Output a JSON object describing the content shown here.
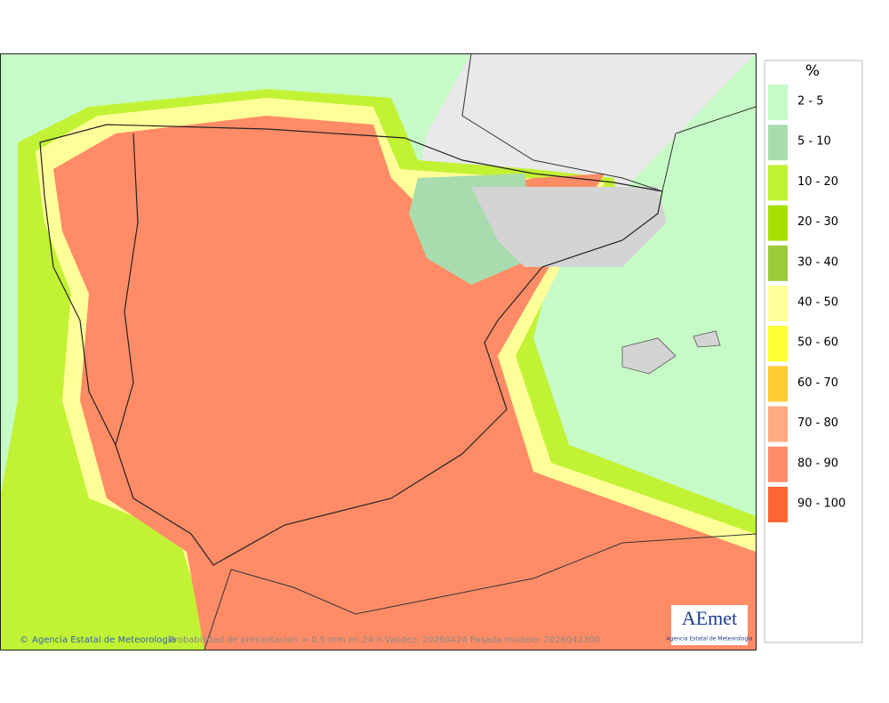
{
  "map": {
    "footer": {
      "credit": "Agencia Estatal de Meteorología",
      "caption": "Probabilidad de precipitación > 0.5 mm en 24 h Validez: 20260424 Pasada modelo: 2026042300"
    },
    "logo": {
      "name": "AEmet",
      "subtitle": "Agencia Estatal de Meteorología"
    }
  },
  "legend": {
    "title": "%",
    "items": [
      {
        "label": "2 - 5",
        "color": "#c6fac6"
      },
      {
        "label": "5 - 10",
        "color": "#a8dcae"
      },
      {
        "label": "10 - 20",
        "color": "#c2f234"
      },
      {
        "label": "20 - 30",
        "color": "#a6e000"
      },
      {
        "label": "30 - 40",
        "color": "#9ccc3a"
      },
      {
        "label": "40 - 50",
        "color": "#ffff99"
      },
      {
        "label": "50 - 60",
        "color": "#ffff33"
      },
      {
        "label": "60 - 70",
        "color": "#ffcc33"
      },
      {
        "label": "70 - 80",
        "color": "#ffaa80"
      },
      {
        "label": "80 - 90",
        "color": "#ff8c66"
      },
      {
        "label": "90 - 100",
        "color": "#ff6633"
      }
    ]
  }
}
